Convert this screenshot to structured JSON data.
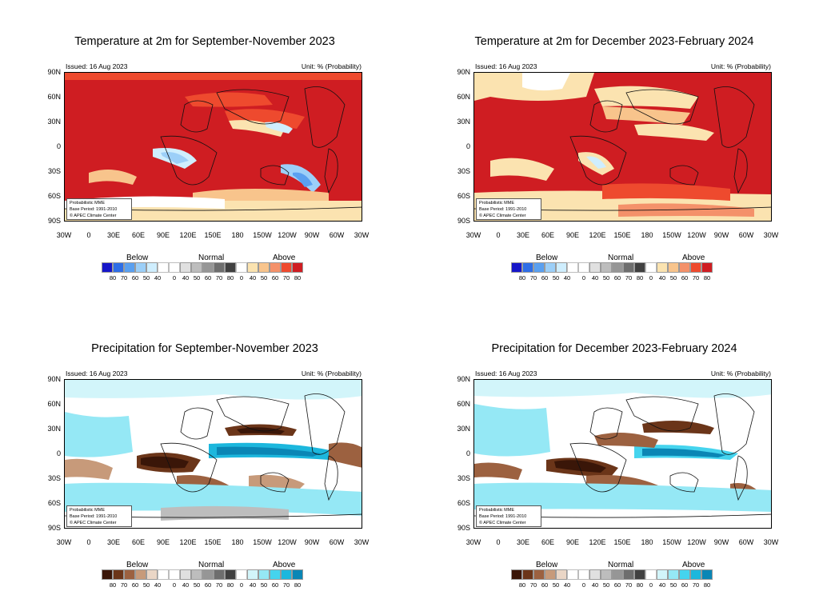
{
  "common": {
    "issued": "Issued: 16 Aug 2023",
    "unit": "Unit: % (Probability)",
    "info_lines": [
      "Probabilistic MME",
      "Base Period: 1991-2010",
      "© APEC Climate Center"
    ],
    "lat_labels": [
      "90N",
      "60N",
      "30N",
      "0",
      "30S",
      "60S",
      "90S"
    ],
    "lon_labels": [
      "30W",
      "0",
      "30E",
      "60E",
      "90E",
      "120E",
      "150E",
      "180",
      "150W",
      "120W",
      "90W",
      "60W",
      "30W"
    ],
    "legend_heads": {
      "below": "Below",
      "normal": "Normal",
      "above": "Above"
    },
    "legend_ticks": [
      "80",
      "70",
      "60",
      "50",
      "40",
      "0",
      "40",
      "50",
      "60",
      "70",
      "80",
      "0",
      "40",
      "50",
      "60",
      "70",
      "80"
    ]
  },
  "colors": {
    "temp_below": [
      "#1616c8",
      "#2e6ee6",
      "#5aa0f0",
      "#9ccff8",
      "#cfeefe"
    ],
    "temp_above": [
      "#fbe3b0",
      "#f8c48c",
      "#f4916a",
      "#ee4a2e",
      "#cf1d22"
    ],
    "prec_below": [
      "#3a1608",
      "#6b3519",
      "#9c6140",
      "#c79a7a",
      "#ead6c6"
    ],
    "prec_above": [
      "#d2f5fa",
      "#95e8f5",
      "#45d4ee",
      "#1cb7dd",
      "#0a86b5"
    ],
    "normal": [
      "#e0e0e0",
      "#bdbdbd",
      "#969696",
      "#6e6e6e",
      "#404040"
    ]
  },
  "panels": [
    {
      "id": "temp-son",
      "title": "Temperature at 2m for September-November 2023",
      "variable": "temperature"
    },
    {
      "id": "temp-djf",
      "title": "Temperature at 2m for December 2023-February 2024",
      "variable": "temperature"
    },
    {
      "id": "prec-son",
      "title": "Precipitation for September-November 2023",
      "variable": "precipitation"
    },
    {
      "id": "prec-djf",
      "title": "Precipitation for December 2023-February 2024",
      "variable": "precipitation"
    }
  ]
}
